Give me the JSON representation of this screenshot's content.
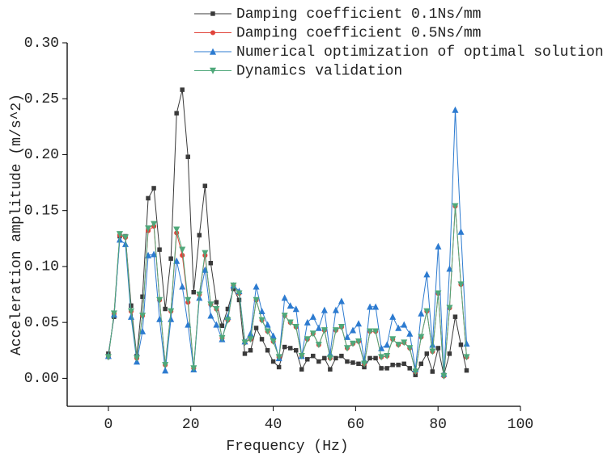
{
  "chart_data": {
    "type": "line",
    "xlabel": "Frequency (Hz)",
    "ylabel": "Acceleration amplitude (m/s^2)",
    "x": [
      0,
      1.38,
      2.76,
      4.14,
      5.52,
      6.9,
      8.28,
      9.66,
      11.04,
      12.42,
      13.8,
      15.18,
      16.56,
      17.94,
      19.32,
      20.7,
      22.08,
      23.46,
      24.84,
      26.22,
      27.6,
      28.98,
      30.36,
      31.74,
      33.12,
      34.5,
      35.88,
      37.26,
      38.64,
      40.02,
      41.4,
      42.78,
      44.16,
      45.54,
      46.92,
      48.3,
      49.68,
      51.06,
      52.44,
      53.82,
      55.2,
      56.58,
      57.96,
      59.34,
      60.72,
      62.1,
      63.48,
      64.86,
      66.24,
      67.62,
      69,
      70.38,
      71.76,
      73.14,
      74.52,
      75.9,
      77.28,
      78.66,
      80.04,
      81.42,
      82.8,
      84.18,
      85.56,
      86.94
    ],
    "series": [
      {
        "name": "Damping coefficient 0.1Ns/mm",
        "color": "#3a3a3a",
        "marker": "square",
        "values": [
          0.022,
          0.055,
          0.127,
          0.127,
          0.065,
          0.02,
          0.073,
          0.161,
          0.17,
          0.115,
          0.062,
          0.107,
          0.237,
          0.258,
          0.198,
          0.077,
          0.128,
          0.172,
          0.103,
          0.068,
          0.047,
          0.062,
          0.08,
          0.07,
          0.022,
          0.025,
          0.045,
          0.035,
          0.025,
          0.015,
          0.01,
          0.028,
          0.027,
          0.025,
          0.008,
          0.017,
          0.02,
          0.015,
          0.018,
          0.008,
          0.018,
          0.02,
          0.015,
          0.014,
          0.013,
          0.01,
          0.018,
          0.018,
          0.009,
          0.009,
          0.012,
          0.012,
          0.013,
          0.009,
          0.003,
          0.013,
          0.022,
          0.006,
          0.027,
          0.003,
          0.022,
          0.055,
          0.03,
          0.007
        ]
      },
      {
        "name": "Damping coefficient 0.5Ns/mm",
        "color": "#e0433a",
        "marker": "circle",
        "values": [
          0.019,
          0.058,
          0.128,
          0.126,
          0.06,
          0.018,
          0.056,
          0.132,
          0.136,
          0.07,
          0.012,
          0.06,
          0.13,
          0.11,
          0.068,
          0.009,
          0.075,
          0.11,
          0.066,
          0.062,
          0.036,
          0.052,
          0.083,
          0.076,
          0.032,
          0.035,
          0.07,
          0.052,
          0.042,
          0.033,
          0.019,
          0.056,
          0.05,
          0.046,
          0.02,
          0.035,
          0.04,
          0.03,
          0.043,
          0.018,
          0.043,
          0.046,
          0.027,
          0.031,
          0.033,
          0.013,
          0.042,
          0.042,
          0.019,
          0.02,
          0.035,
          0.03,
          0.032,
          0.027,
          0.006,
          0.037,
          0.06,
          0.024,
          0.076,
          0.002,
          0.063,
          0.154,
          0.084,
          0.019
        ]
      },
      {
        "name": "Numerical optimization of optimal solution",
        "color": "#2d7bd0",
        "marker": "triangle",
        "values": [
          0.02,
          0.057,
          0.124,
          0.12,
          0.055,
          0.015,
          0.042,
          0.11,
          0.111,
          0.053,
          0.007,
          0.053,
          0.105,
          0.082,
          0.048,
          0.008,
          0.072,
          0.097,
          0.056,
          0.048,
          0.035,
          0.055,
          0.083,
          0.078,
          0.033,
          0.04,
          0.082,
          0.06,
          0.048,
          0.038,
          0.018,
          0.072,
          0.065,
          0.062,
          0.02,
          0.05,
          0.055,
          0.045,
          0.061,
          0.022,
          0.061,
          0.069,
          0.037,
          0.043,
          0.049,
          0.016,
          0.064,
          0.064,
          0.027,
          0.03,
          0.055,
          0.045,
          0.048,
          0.04,
          0.008,
          0.058,
          0.093,
          0.03,
          0.118,
          0.004,
          0.098,
          0.24,
          0.131,
          0.031
        ]
      },
      {
        "name": "Dynamics validation",
        "color": "#4fa87a",
        "marker": "down-triangle",
        "values": [
          0.019,
          0.058,
          0.129,
          0.126,
          0.06,
          0.018,
          0.056,
          0.134,
          0.138,
          0.07,
          0.012,
          0.06,
          0.133,
          0.115,
          0.07,
          0.009,
          0.075,
          0.112,
          0.066,
          0.062,
          0.036,
          0.052,
          0.083,
          0.076,
          0.032,
          0.035,
          0.07,
          0.052,
          0.042,
          0.033,
          0.019,
          0.056,
          0.05,
          0.046,
          0.02,
          0.035,
          0.04,
          0.03,
          0.043,
          0.018,
          0.043,
          0.046,
          0.027,
          0.031,
          0.033,
          0.013,
          0.042,
          0.042,
          0.019,
          0.02,
          0.035,
          0.03,
          0.032,
          0.027,
          0.006,
          0.037,
          0.06,
          0.024,
          0.076,
          0.002,
          0.063,
          0.154,
          0.084,
          0.019
        ]
      }
    ],
    "xlim": [
      -10,
      100
    ],
    "xticks": [
      0,
      20,
      40,
      60,
      80,
      100
    ],
    "ylim": [
      -0.025,
      0.3
    ],
    "yticks": [
      {
        "value": 0,
        "label": "0.00"
      },
      {
        "value": 0.05,
        "label": "0.05"
      },
      {
        "value": 0.1,
        "label": "0.10"
      },
      {
        "value": 0.15,
        "label": "0.15"
      },
      {
        "value": 0.2,
        "label": "0.20"
      },
      {
        "value": 0.25,
        "label": "0.25"
      },
      {
        "value": 0.3,
        "label": "0.30"
      }
    ],
    "legend": "top"
  }
}
